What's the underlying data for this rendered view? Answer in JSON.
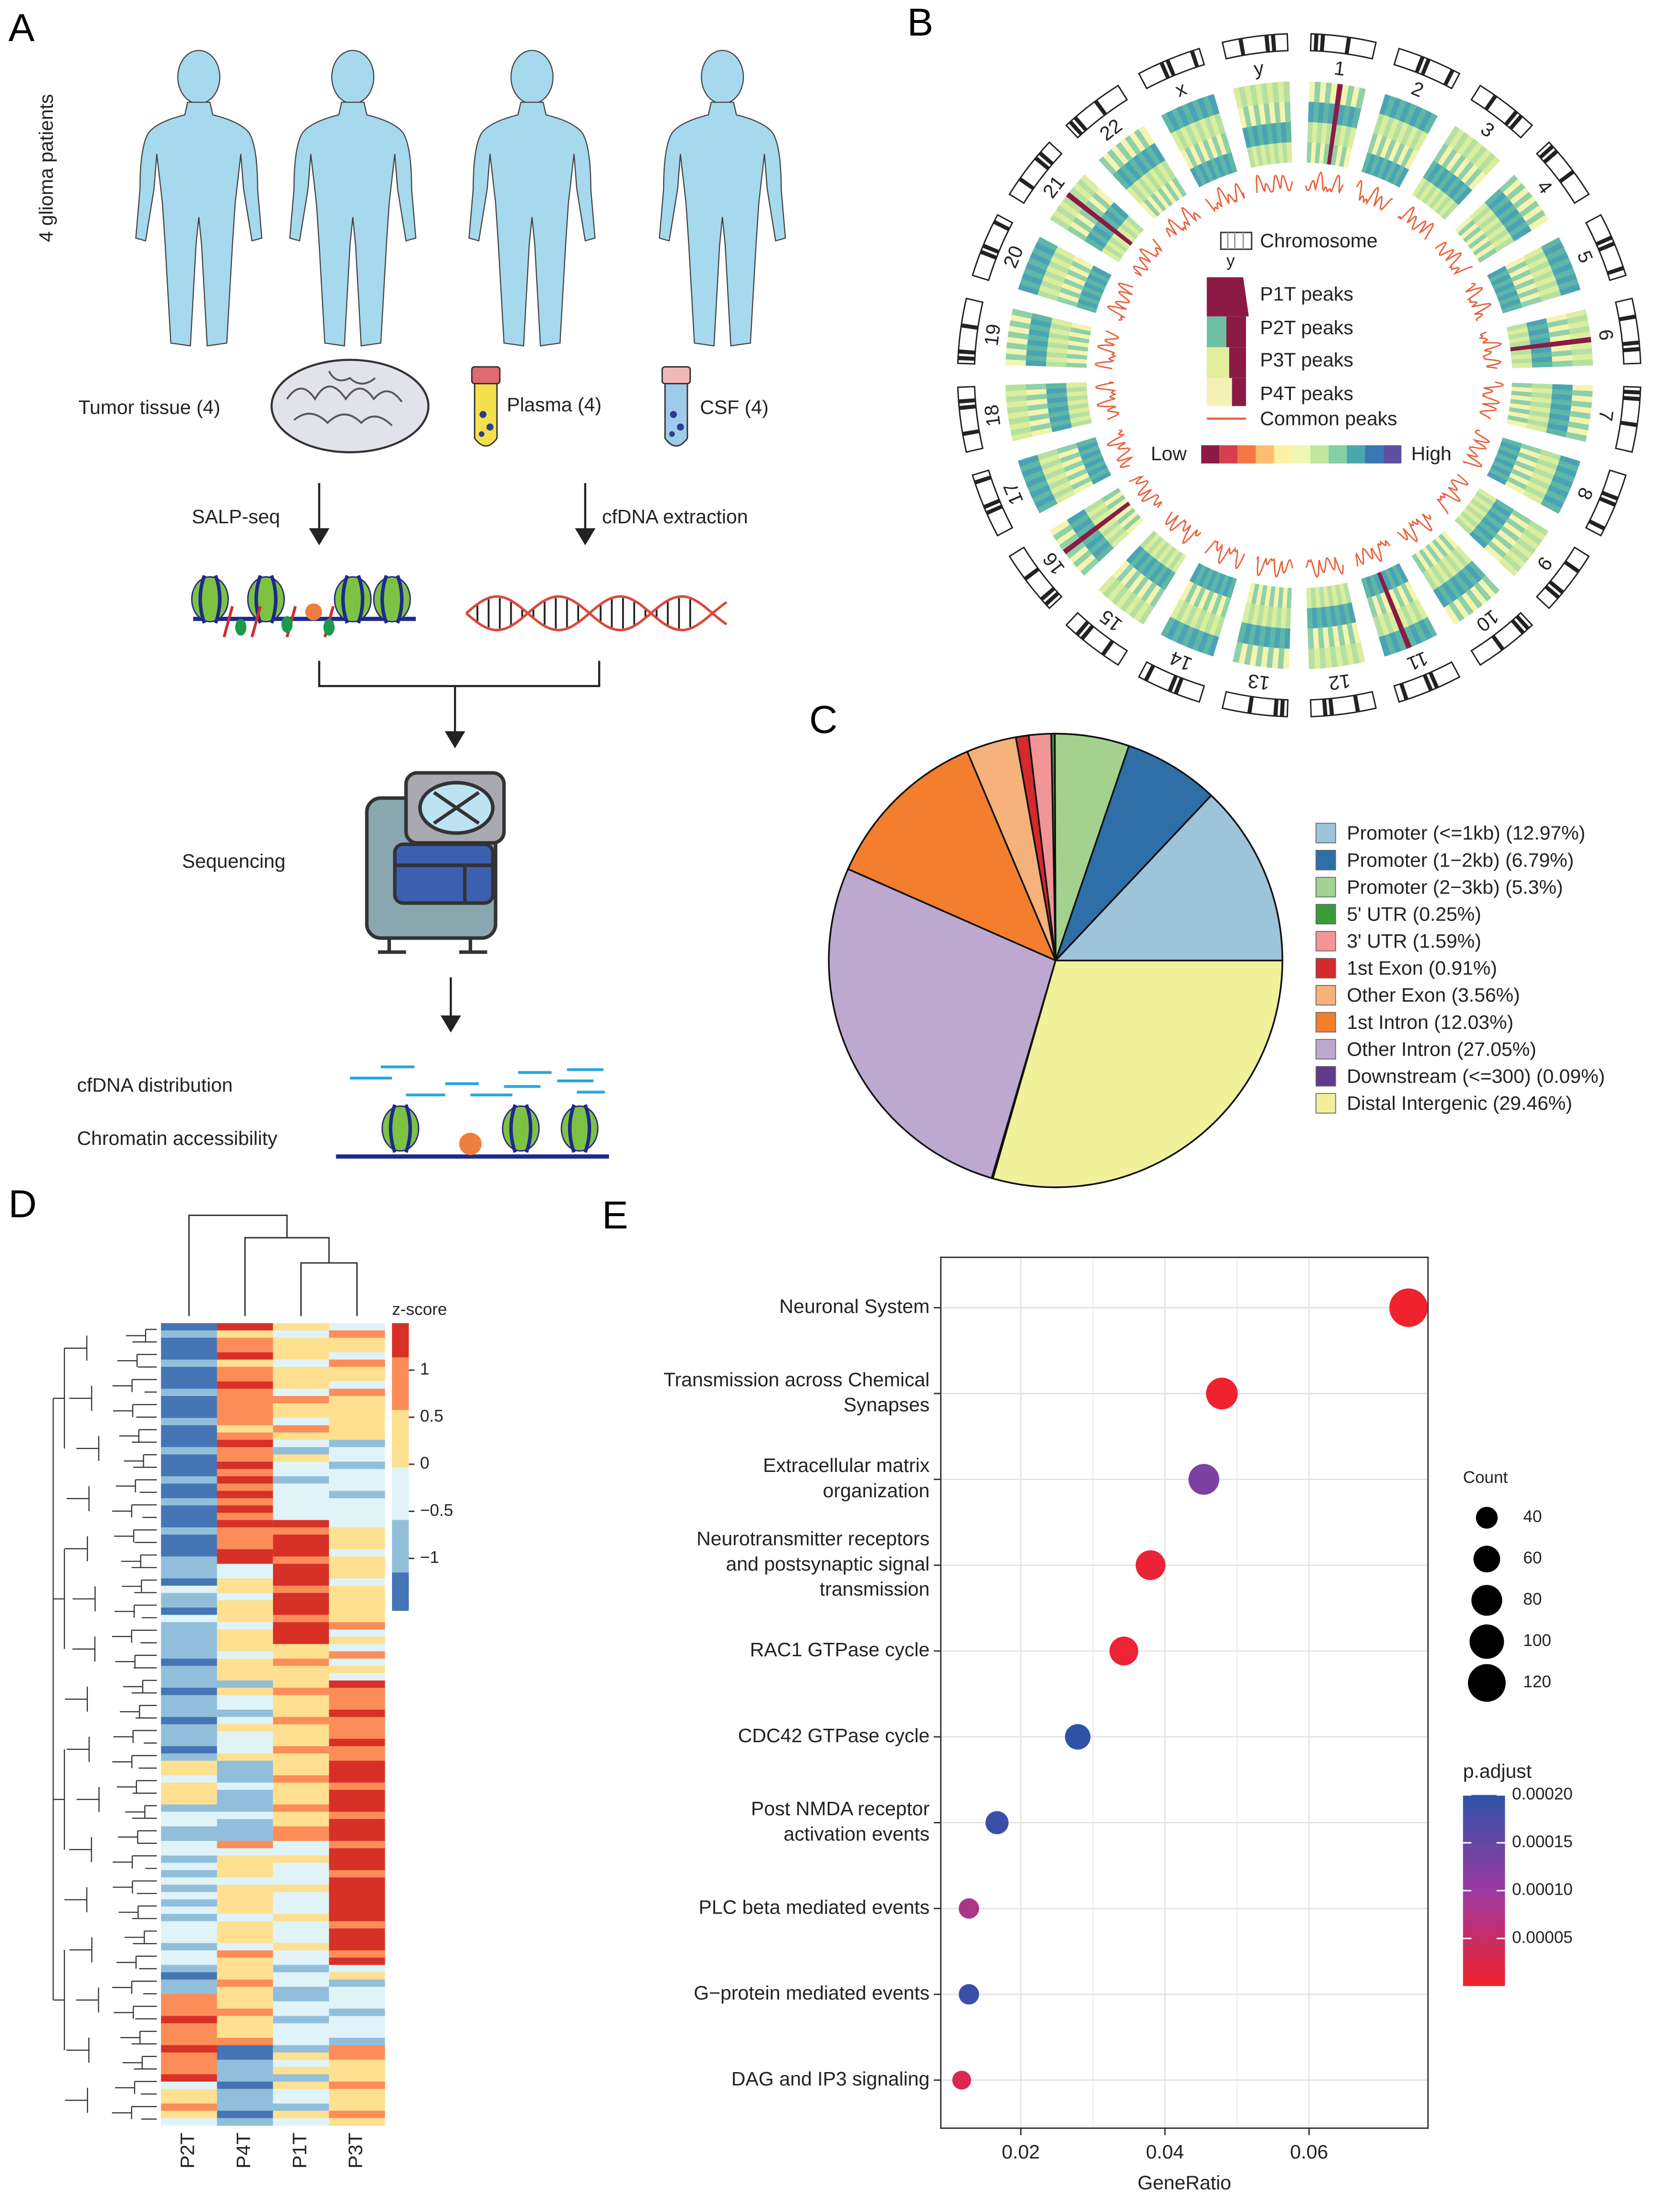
{
  "panel_labels": [
    "A",
    "B",
    "C",
    "D",
    "E"
  ],
  "panel_a": {
    "side_label": "4 glioma patients",
    "samples": [
      "Tumor tissue (4)",
      "Plasma (4)",
      "CSF (4)"
    ],
    "methods": [
      "SALP-seq",
      "cfDNA extraction"
    ],
    "step": "Sequencing",
    "outputs": [
      "cfDNA distribution",
      "Chromatin accessibility"
    ]
  },
  "circos": {
    "chromosomes": [
      "1",
      "2",
      "3",
      "4",
      "5",
      "6",
      "7",
      "8",
      "9",
      "10",
      "11",
      "12",
      "13",
      "14",
      "15",
      "16",
      "17",
      "18",
      "19",
      "20",
      "21",
      "22",
      "x",
      "y"
    ],
    "legend": {
      "chromosome": "Chromosome",
      "y_label": "y",
      "peaks": [
        "P1T peaks",
        "P2T peaks",
        "P3T peaks",
        "P4T peaks"
      ],
      "common": "Common peaks",
      "low": "Low",
      "high": "High"
    }
  },
  "chart_data": [
    {
      "type": "pie",
      "categories": [
        "Promoter (<=1kb) (12.97%)",
        "Promoter (1−2kb) (6.79%)",
        "Promoter (2−3kb) (5.3%)",
        "5' UTR (0.25%)",
        "3' UTR (1.59%)",
        "1st Exon (0.91%)",
        "Other Exon (3.56%)",
        "1st Intron (12.03%)",
        "Other Intron (27.05%)",
        "Downstream (<=300) (0.09%)",
        "Distal Intergenic (29.46%)"
      ],
      "values": [
        12.97,
        6.79,
        5.3,
        0.25,
        1.59,
        0.91,
        3.56,
        12.03,
        27.05,
        0.09,
        29.46
      ],
      "colors": [
        "#9dc4d9",
        "#2e6fa7",
        "#a3d28e",
        "#3a9b3a",
        "#f19597",
        "#d42a2c",
        "#f5b27b",
        "#f27e2e",
        "#bda9cf",
        "#5e3b8d",
        "#f1f19c"
      ]
    },
    {
      "type": "heatmap",
      "columns": [
        "P2T",
        "P4T",
        "P1T",
        "P3T"
      ],
      "colorbar_title": "z-score",
      "clim": [
        -1.55,
        1.5
      ],
      "cticks": [
        1,
        0.5,
        0,
        {
          "value": -0.5,
          "label": "−0.5"
        },
        {
          "value": -1,
          "label": "−1"
        }
      ]
    },
    {
      "type": "dot",
      "categories": [
        [
          "Neuronal System"
        ],
        [
          "Transmission across Chemical",
          "Synapses"
        ],
        [
          "Extracellular matrix",
          "organization"
        ],
        [
          "Neurotransmitter receptors",
          "and postsynaptic signal",
          "transmission"
        ],
        [
          "RAC1 GTPase cycle"
        ],
        [
          "CDC42 GTPase cycle"
        ],
        [
          "Post NMDA receptor",
          "activation events"
        ],
        [
          "PLC beta mediated events"
        ],
        [
          "G−protein mediated events"
        ],
        [
          "DAG and IP3 signaling"
        ]
      ],
      "values": [
        0.0738,
        0.0479,
        0.0454,
        0.038,
        0.0343,
        0.0279,
        0.0167,
        0.0128,
        0.0128,
        0.0118
      ],
      "sizes": [
        125,
        85,
        80,
        75,
        70,
        55,
        45,
        35,
        35,
        30
      ],
      "p_adjust": [
        3e-06,
        4e-06,
        0.00013,
        1e-05,
        8e-06,
        0.0002,
        0.00019,
        8e-05,
        0.00019,
        3e-05
      ],
      "x_label": "GeneRatio",
      "xlim": [
        0.0089,
        0.0765
      ],
      "xticks": [
        0.02,
        0.04,
        0.06
      ],
      "grid": true,
      "size_legend": {
        "title": "Count",
        "values": [
          40,
          60,
          80,
          100,
          120
        ]
      },
      "color_legend": {
        "title": "p.adjust",
        "lim": [
          1e-06,
          0.0002
        ],
        "ticks": [
          {
            "value": 0.0002,
            "label": "0.00020"
          },
          {
            "value": 0.00015,
            "label": "0.00015"
          },
          {
            "value": 0.0001,
            "label": "0.00010"
          },
          {
            "value": 5e-05,
            "label": "0.00005"
          }
        ],
        "colors": [
          "#f2222c",
          "#9b3aa0",
          "#2f52a8"
        ]
      }
    }
  ]
}
